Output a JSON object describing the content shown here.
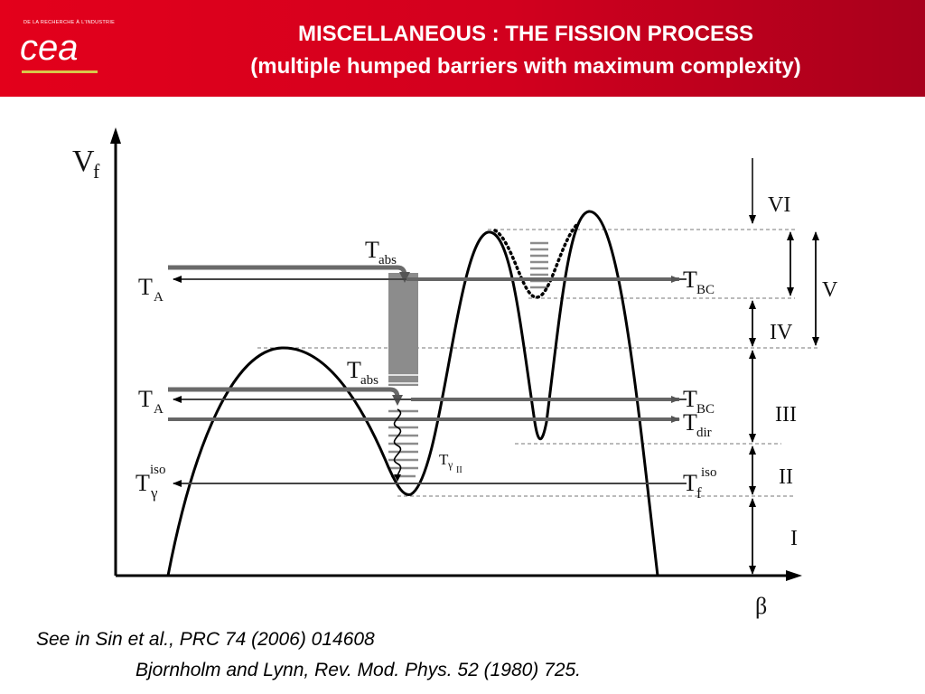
{
  "header": {
    "logo_tagline": "DE LA RECHERCHE À L'INDUSTRIE",
    "logo_text": "cea",
    "title_line1": "MISCELLANEOUS : THE FISSION PROCESS",
    "title_line2": "(multiple humped barriers with maximum complexity)"
  },
  "diagram": {
    "y_axis_label": "V",
    "y_axis_sub": "f",
    "x_axis_label": "β",
    "labels": {
      "TA_upper": {
        "main": "T",
        "sub": "A"
      },
      "TA_lower": {
        "main": "T",
        "sub": "A"
      },
      "Tabs_upper": {
        "main": "T",
        "sub": "abs"
      },
      "Tabs_lower": {
        "main": "T",
        "sub": "abs"
      },
      "TBC_upper": {
        "main": "T",
        "sub": "BC"
      },
      "TBC_lower": {
        "main": "T",
        "sub": "BC"
      },
      "Tdir": {
        "main": "T",
        "sub": "dir"
      },
      "Tgamma_iso": {
        "main": "T",
        "sub": "γ",
        "sup": "iso"
      },
      "Tf_iso": {
        "main": "T",
        "sub": "f",
        "sup": "iso"
      },
      "Tgamma_II": {
        "main": "T",
        "sub": "γ",
        "subsub": "II"
      }
    },
    "regions": [
      "VI",
      "V",
      "IV",
      "III",
      "II",
      "I"
    ]
  },
  "references": {
    "line1": "See in  Sin et al., PRC 74 (2006) 014608",
    "line2": "Bjornholm and Lynn, Rev. Mod. Phys. 52 (1980) 725."
  }
}
